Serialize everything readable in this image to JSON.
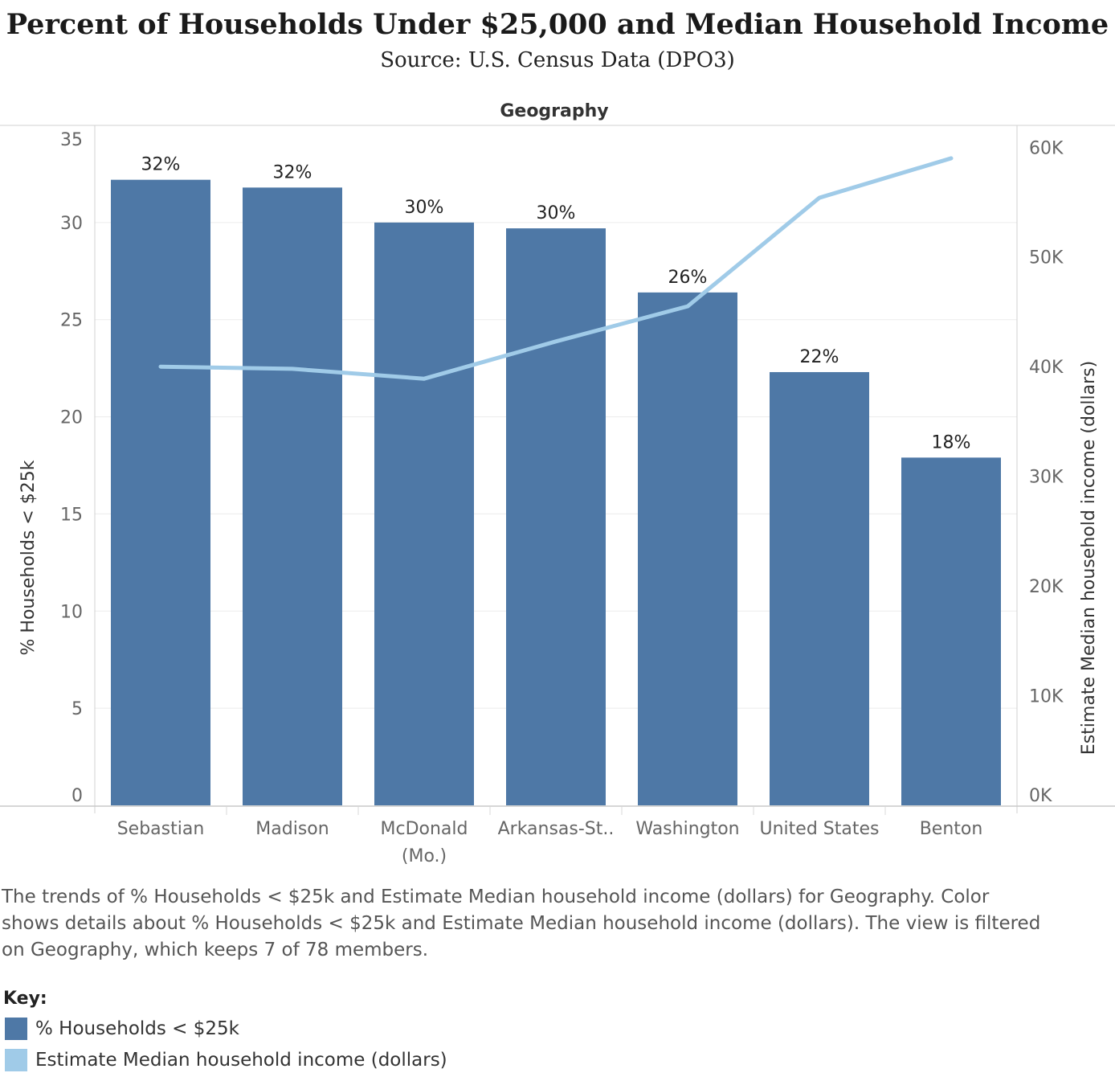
{
  "title": "Percent of Households Under $25,000 and Median Household Income",
  "subtitle": "Source: U.S. Census Data (DPO3)",
  "caption": "The trends of % Households < $25k and Estimate Median household income (dollars) for Geography.  Color shows details about % Households < $25k and Estimate Median household income (dollars). The view is filtered on Geography, which keeps 7 of 78 members.",
  "key": {
    "title": "Key:",
    "items": [
      {
        "label": "% Households < $25k",
        "color": "#4e78a6"
      },
      {
        "label": "Estimate Median household income (dollars)",
        "color": "#a0cbe8"
      }
    ]
  },
  "chart_data": {
    "type": "bar",
    "column_header": "Geography",
    "categories": [
      [
        "Sebastian"
      ],
      [
        "Madison"
      ],
      [
        "McDonald",
        "(Mo.)"
      ],
      [
        "Arkansas-St.."
      ],
      [
        "Washington"
      ],
      [
        "United States"
      ],
      [
        "Benton"
      ]
    ],
    "series": [
      {
        "name": "% Households < $25k",
        "type": "bar",
        "axis": "left",
        "values": [
          32.2,
          31.8,
          30.0,
          29.7,
          26.4,
          22.3,
          17.9
        ],
        "data_labels": [
          "32%",
          "32%",
          "30%",
          "30%",
          "26%",
          "22%",
          "18%"
        ],
        "color": "#4e78a6"
      },
      {
        "name": "Estimate Median household income (dollars)",
        "type": "line",
        "axis": "right",
        "values": [
          40000,
          39800,
          38900,
          42300,
          45500,
          55400,
          59000
        ],
        "color": "#a0cbe8"
      }
    ],
    "y_left": {
      "label": "% Households < $25k",
      "ylim": [
        0,
        35
      ],
      "ticks": [
        0,
        5,
        10,
        15,
        20,
        25,
        30,
        35
      ],
      "tick_labels": [
        "0",
        "5",
        "10",
        "15",
        "20",
        "25",
        "30",
        "35"
      ]
    },
    "y_right": {
      "label": "Estimate Median household income (dollars)",
      "ylim": [
        0,
        62000
      ],
      "ticks": [
        0,
        10000,
        20000,
        30000,
        40000,
        50000,
        60000
      ],
      "tick_labels": [
        "0K",
        "10K",
        "20K",
        "30K",
        "40K",
        "50K",
        "60K"
      ]
    },
    "grid": true
  }
}
